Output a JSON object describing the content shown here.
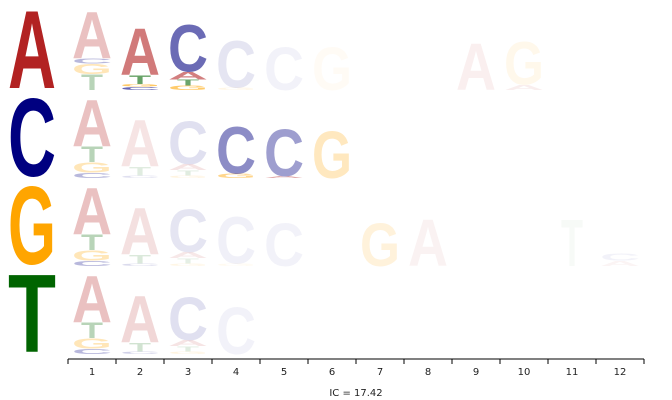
{
  "chart_data": {
    "type": "sequence-logo",
    "title": "",
    "xlabel": "",
    "ylabel": "",
    "ic_label": "IC = 17.42",
    "alphabet": [
      "A",
      "C",
      "G",
      "T"
    ],
    "colors": {
      "A": "#b22222",
      "C": "#000080",
      "G": "#ffa500",
      "T": "#006400"
    },
    "legend": [
      {
        "letter": "A",
        "color": "#b22222"
      },
      {
        "letter": "C",
        "color": "#000080"
      },
      {
        "letter": "G",
        "color": "#ffa500"
      },
      {
        "letter": "T",
        "color": "#006400"
      }
    ],
    "positions": [
      1,
      2,
      3,
      4,
      5,
      6,
      7,
      8,
      9,
      10,
      11,
      12
    ],
    "rows": 4,
    "stacks": [
      {
        "row": 0,
        "position": 1,
        "opacity": 0.28,
        "letters": [
          {
            "l": "T",
            "h": 0.18
          },
          {
            "l": "G",
            "h": 0.12
          },
          {
            "l": "C",
            "h": 0.06
          },
          {
            "l": "A",
            "h": 0.55
          }
        ]
      },
      {
        "row": 0,
        "position": 2,
        "opacity": 0.6,
        "letters": [
          {
            "l": "C",
            "h": 0.04
          },
          {
            "l": "G",
            "h": 0.03
          },
          {
            "l": "T",
            "h": 0.1
          },
          {
            "l": "A",
            "h": 0.55
          }
        ]
      },
      {
        "row": 0,
        "position": 3,
        "opacity": 0.58,
        "letters": [
          {
            "l": "G",
            "h": 0.05
          },
          {
            "l": "T",
            "h": 0.07
          },
          {
            "l": "A",
            "h": 0.09
          },
          {
            "l": "C",
            "h": 0.55
          }
        ]
      },
      {
        "row": 0,
        "position": 4,
        "opacity": 0.1,
        "letters": [
          {
            "l": "G",
            "h": 0.03
          },
          {
            "l": "C",
            "h": 0.55
          }
        ]
      },
      {
        "row": 0,
        "position": 5,
        "opacity": 0.05,
        "letters": [
          {
            "l": "C",
            "h": 0.5
          }
        ]
      },
      {
        "row": 0,
        "position": 6,
        "opacity": 0.04,
        "letters": [
          {
            "l": "G",
            "h": 0.5
          }
        ]
      },
      {
        "row": 0,
        "position": 9,
        "opacity": 0.07,
        "letters": [
          {
            "l": "A",
            "h": 0.55
          }
        ]
      },
      {
        "row": 0,
        "position": 10,
        "opacity": 0.08,
        "letters": [
          {
            "l": "A",
            "h": 0.06
          },
          {
            "l": "G",
            "h": 0.5
          }
        ]
      },
      {
        "row": 1,
        "position": 1,
        "opacity": 0.28,
        "letters": [
          {
            "l": "C",
            "h": 0.06
          },
          {
            "l": "G",
            "h": 0.12
          },
          {
            "l": "T",
            "h": 0.18
          },
          {
            "l": "A",
            "h": 0.55
          }
        ]
      },
      {
        "row": 1,
        "position": 2,
        "opacity": 0.12,
        "letters": [
          {
            "l": "C",
            "h": 0.03
          },
          {
            "l": "T",
            "h": 0.1
          },
          {
            "l": "A",
            "h": 0.55
          }
        ]
      },
      {
        "row": 1,
        "position": 3,
        "opacity": 0.12,
        "letters": [
          {
            "l": "G",
            "h": 0.03
          },
          {
            "l": "T",
            "h": 0.06
          },
          {
            "l": "A",
            "h": 0.07
          },
          {
            "l": "C",
            "h": 0.5
          }
        ]
      },
      {
        "row": 1,
        "position": 4,
        "opacity": 0.45,
        "letters": [
          {
            "l": "G",
            "h": 0.05
          },
          {
            "l": "C",
            "h": 0.55
          }
        ]
      },
      {
        "row": 1,
        "position": 5,
        "opacity": 0.38,
        "letters": [
          {
            "l": "A",
            "h": 0.02
          },
          {
            "l": "C",
            "h": 0.55
          }
        ]
      },
      {
        "row": 1,
        "position": 6,
        "opacity": 0.25,
        "letters": [
          {
            "l": "G",
            "h": 0.55
          }
        ]
      },
      {
        "row": 2,
        "position": 1,
        "opacity": 0.28,
        "letters": [
          {
            "l": "C",
            "h": 0.06
          },
          {
            "l": "G",
            "h": 0.12
          },
          {
            "l": "T",
            "h": 0.18
          },
          {
            "l": "A",
            "h": 0.55
          }
        ]
      },
      {
        "row": 2,
        "position": 2,
        "opacity": 0.14,
        "letters": [
          {
            "l": "C",
            "h": 0.03
          },
          {
            "l": "T",
            "h": 0.1
          },
          {
            "l": "A",
            "h": 0.55
          }
        ]
      },
      {
        "row": 2,
        "position": 3,
        "opacity": 0.1,
        "letters": [
          {
            "l": "G",
            "h": 0.03
          },
          {
            "l": "T",
            "h": 0.06
          },
          {
            "l": "A",
            "h": 0.07
          },
          {
            "l": "C",
            "h": 0.5
          }
        ]
      },
      {
        "row": 2,
        "position": 4,
        "opacity": 0.06,
        "letters": [
          {
            "l": "G",
            "h": 0.03
          },
          {
            "l": "C",
            "h": 0.55
          }
        ]
      },
      {
        "row": 2,
        "position": 5,
        "opacity": 0.05,
        "letters": [
          {
            "l": "C",
            "h": 0.5
          }
        ]
      },
      {
        "row": 2,
        "position": 7,
        "opacity": 0.14,
        "letters": [
          {
            "l": "G",
            "h": 0.5
          }
        ]
      },
      {
        "row": 2,
        "position": 8,
        "opacity": 0.06,
        "letters": [
          {
            "l": "A",
            "h": 0.55
          }
        ]
      },
      {
        "row": 2,
        "position": 11,
        "opacity": 0.03,
        "letters": [
          {
            "l": "T",
            "h": 0.55
          }
        ]
      },
      {
        "row": 2,
        "position": 12,
        "opacity": 0.05,
        "letters": [
          {
            "l": "A",
            "h": 0.06
          },
          {
            "l": "C",
            "h": 0.08
          }
        ]
      },
      {
        "row": 3,
        "position": 1,
        "opacity": 0.28,
        "letters": [
          {
            "l": "C",
            "h": 0.06
          },
          {
            "l": "G",
            "h": 0.12
          },
          {
            "l": "T",
            "h": 0.18
          },
          {
            "l": "A",
            "h": 0.55
          }
        ]
      },
      {
        "row": 3,
        "position": 2,
        "opacity": 0.18,
        "letters": [
          {
            "l": "C",
            "h": 0.03
          },
          {
            "l": "T",
            "h": 0.1
          },
          {
            "l": "A",
            "h": 0.55
          }
        ]
      },
      {
        "row": 3,
        "position": 3,
        "opacity": 0.12,
        "letters": [
          {
            "l": "G",
            "h": 0.03
          },
          {
            "l": "T",
            "h": 0.06
          },
          {
            "l": "A",
            "h": 0.07
          },
          {
            "l": "C",
            "h": 0.5
          }
        ]
      },
      {
        "row": 3,
        "position": 4,
        "opacity": 0.05,
        "letters": [
          {
            "l": "C",
            "h": 0.55
          }
        ]
      }
    ]
  }
}
